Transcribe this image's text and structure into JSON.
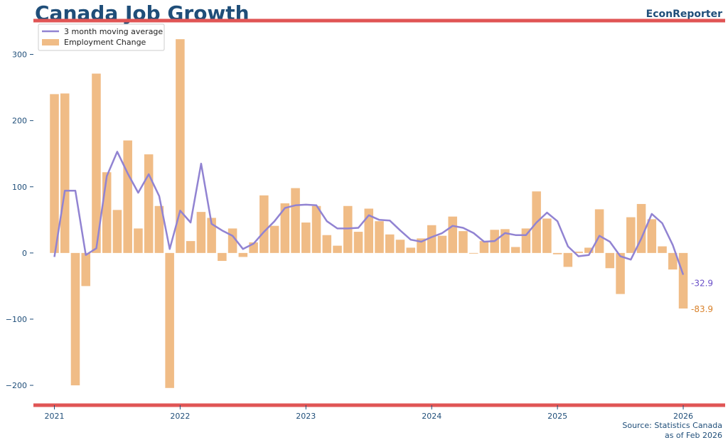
{
  "header": {
    "title": "Canada Job Growth",
    "brand": "EconReporter"
  },
  "footer": {
    "source_line1": "Source: Statistics Canada",
    "source_line2": "as of Feb 2026"
  },
  "colors": {
    "bar": "#f0bc86",
    "line": "#9183d2",
    "rule": "#e05555",
    "text": "#1f4e79",
    "last_ma_label": "#6a4fc8",
    "last_bar_label": "#d9822b"
  },
  "chart_data": {
    "type": "bar",
    "title": "Canada Job Growth",
    "xlabel": "",
    "ylabel": "",
    "ylim": [
      -230,
      350
    ],
    "xlim": [
      "2020-11",
      "2026-05"
    ],
    "yticks": [
      {
        "value": 300,
        "label": "300"
      },
      {
        "value": 200,
        "label": "200"
      },
      {
        "value": 100,
        "label": "100"
      },
      {
        "value": 0,
        "label": "0"
      },
      {
        "value": -100,
        "label": "−100"
      },
      {
        "value": -200,
        "label": "−200"
      }
    ],
    "xticks": [
      "2021",
      "2022",
      "2023",
      "2024",
      "2025",
      "2026"
    ],
    "legend_position": "top-left",
    "grid": false,
    "x": [
      "2021-01",
      "2021-02",
      "2021-03",
      "2021-04",
      "2021-05",
      "2021-06",
      "2021-07",
      "2021-08",
      "2021-09",
      "2021-10",
      "2021-11",
      "2021-12",
      "2022-01",
      "2022-02",
      "2022-03",
      "2022-04",
      "2022-05",
      "2022-06",
      "2022-07",
      "2022-08",
      "2022-09",
      "2022-10",
      "2022-11",
      "2022-12",
      "2023-01",
      "2023-02",
      "2023-03",
      "2023-04",
      "2023-05",
      "2023-06",
      "2023-07",
      "2023-08",
      "2023-09",
      "2023-10",
      "2023-11",
      "2023-12",
      "2024-01",
      "2024-02",
      "2024-03",
      "2024-04",
      "2024-05",
      "2024-06",
      "2024-07",
      "2024-08",
      "2024-09",
      "2024-10",
      "2024-11",
      "2024-12",
      "2025-01",
      "2025-02",
      "2025-03",
      "2025-04",
      "2025-05",
      "2025-06",
      "2025-07",
      "2025-08",
      "2025-09",
      "2025-10",
      "2025-11",
      "2025-12",
      "2026-01"
    ],
    "series": [
      {
        "name": "Employment Change",
        "type": "bar",
        "values": [
          240,
          241,
          -200,
          -50,
          271,
          122,
          65,
          170,
          37,
          149,
          71,
          -204,
          323,
          18,
          62,
          53,
          -12,
          37,
          -6,
          16,
          87,
          41,
          75,
          98,
          46,
          71,
          27,
          11,
          71,
          32,
          67,
          48,
          28,
          20,
          8,
          22,
          42,
          26,
          55,
          33,
          -1,
          18,
          35,
          36,
          9,
          37,
          93,
          52,
          -2,
          -21,
          2,
          8,
          66,
          -23,
          -62,
          54,
          74,
          51,
          10,
          -25,
          -83.9
        ]
      },
      {
        "name": "3 month moving average",
        "type": "line",
        "values": [
          -6,
          94,
          94,
          -3,
          7,
          116,
          153,
          120,
          91,
          119,
          86,
          6,
          64,
          46,
          135,
          44,
          34,
          26,
          6,
          14,
          32,
          48,
          68,
          72,
          73,
          72,
          48,
          37,
          37,
          38,
          57,
          50,
          49,
          34,
          20,
          17,
          24,
          30,
          41,
          38,
          30,
          17,
          18,
          30,
          27,
          27,
          46,
          61,
          48,
          10,
          -5,
          -3,
          26,
          17,
          -5,
          -10,
          22,
          59,
          45,
          12,
          -32.9
        ]
      }
    ],
    "end_labels": {
      "moving_average": "-32.9",
      "employment_change": "-83.9"
    }
  }
}
